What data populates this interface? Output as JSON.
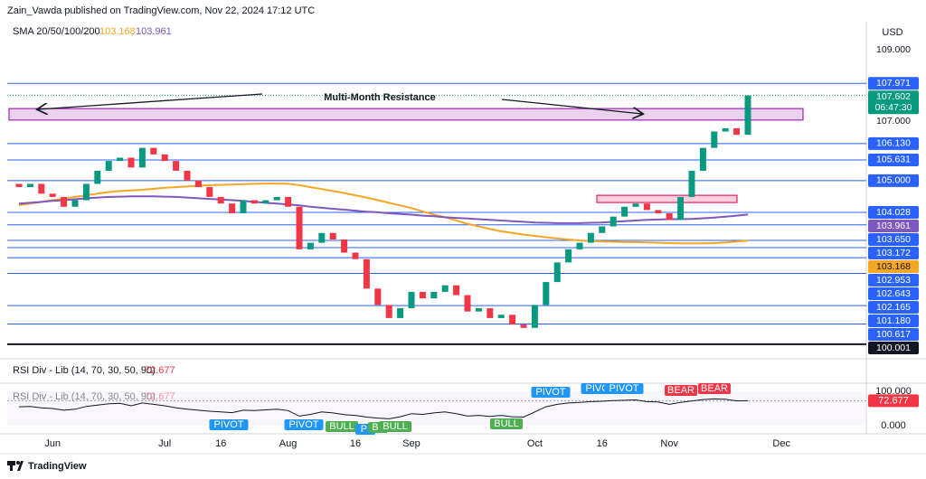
{
  "chart_data": {
    "type": "candlestick",
    "source": "Zain_Vawda published on TradingView.com, Nov 22, 2024 17:12 UTC",
    "indicator_label": "SMA 20/50/100/200",
    "currency": "USD",
    "annotation": "Multi-Month Resistance",
    "footer": "TradingView",
    "up_color": "#089981",
    "down_color": "#f23645",
    "ylim": [
      99.61,
      109.8
    ],
    "yticks": [
      {
        "value": 109,
        "label": "109.000"
      },
      {
        "value": 107,
        "label": "107.000"
      }
    ],
    "categories": [
      null,
      null,
      null,
      "Jun",
      null,
      null,
      null,
      null,
      null,
      null,
      null,
      null,
      null,
      "Jul",
      null,
      null,
      null,
      null,
      "16",
      null,
      null,
      null,
      null,
      null,
      "Aug",
      null,
      null,
      null,
      null,
      null,
      "16",
      null,
      null,
      null,
      null,
      "Sep",
      null,
      null,
      null,
      null,
      null,
      null,
      null,
      null,
      null,
      null,
      "Oct",
      null,
      null,
      null,
      null,
      null,
      "16",
      null,
      null,
      null,
      null,
      null,
      "Nov",
      null,
      null,
      null,
      null,
      null,
      null,
      null,
      null,
      null,
      "Dec"
    ],
    "open": [
      104.9,
      104.8,
      104.9,
      104.6,
      104.5,
      104.2,
      104.4,
      104.9,
      105.3,
      105.6,
      105.7,
      105.4,
      106.0,
      105.8,
      105.6,
      105.3,
      105.0,
      104.8,
      104.5,
      104.3,
      104.0,
      104.4,
      104.3,
      104.4,
      104.5,
      104.2,
      102.9,
      103.1,
      103.4,
      103.2,
      102.8,
      102.6,
      101.7,
      101.2,
      100.8,
      101.1,
      101.6,
      101.4,
      101.6,
      101.8,
      101.5,
      101.0,
      101.1,
      100.8,
      100.9,
      100.6,
      100.5,
      101.2,
      101.9,
      102.5,
      102.9,
      103.1,
      103.4,
      103.6,
      103.9,
      104.2,
      104.3,
      104.1,
      104.0,
      103.8,
      104.5,
      105.3,
      106.0,
      106.5,
      106.6,
      106.4,
      null,
      null,
      null
    ],
    "close": [
      104.8,
      104.9,
      104.6,
      104.5,
      104.2,
      104.4,
      104.9,
      105.3,
      105.6,
      105.7,
      105.4,
      106.0,
      105.8,
      105.6,
      105.3,
      105.0,
      104.8,
      104.5,
      104.3,
      104.0,
      104.4,
      104.3,
      104.4,
      104.5,
      104.2,
      102.9,
      103.1,
      103.4,
      103.2,
      102.8,
      102.6,
      101.7,
      101.2,
      100.8,
      101.1,
      101.6,
      101.4,
      101.6,
      101.8,
      101.5,
      101.0,
      101.1,
      100.8,
      100.9,
      100.6,
      100.5,
      101.2,
      101.9,
      102.5,
      102.9,
      103.1,
      103.4,
      103.6,
      103.9,
      104.2,
      104.3,
      104.1,
      104.0,
      103.8,
      104.5,
      105.3,
      106.0,
      106.5,
      106.6,
      106.4,
      107.602,
      null,
      null,
      null
    ],
    "countdown": "06:47:30",
    "current_color": "#089981",
    "sma": [
      {
        "color": "#f5a623",
        "values": [
          104.25,
          104.3,
          104.35,
          104.4,
          104.45,
          104.5,
          104.55,
          104.6,
          104.65,
          104.68,
          104.7,
          104.72,
          104.75,
          104.78,
          104.8,
          104.82,
          104.84,
          104.86,
          104.87,
          104.88,
          104.89,
          104.9,
          104.91,
          104.91,
          104.9,
          104.86,
          104.8,
          104.74,
          104.68,
          104.62,
          104.55,
          104.48,
          104.4,
          104.32,
          104.24,
          104.16,
          104.06,
          103.96,
          103.88,
          103.78,
          103.68,
          103.6,
          103.52,
          103.45,
          103.4,
          103.35,
          103.31,
          103.27,
          103.23,
          103.2,
          103.17,
          103.15,
          103.14,
          103.13,
          103.12,
          103.12,
          103.11,
          103.1,
          103.09,
          103.08,
          103.08,
          103.08,
          103.09,
          103.11,
          103.14,
          103.168,
          null,
          null,
          null
        ]
      },
      {
        "color": "#7e57c2",
        "values": [
          104.3,
          104.32,
          104.35,
          104.38,
          104.4,
          104.43,
          104.46,
          104.48,
          104.5,
          104.51,
          104.52,
          104.52,
          104.52,
          104.51,
          104.5,
          104.48,
          104.46,
          104.44,
          104.42,
          104.4,
          104.38,
          104.35,
          104.32,
          104.3,
          104.27,
          104.24,
          104.2,
          104.17,
          104.14,
          104.11,
          104.08,
          104.05,
          104.03,
          104.0,
          103.98,
          103.96,
          103.93,
          103.91,
          103.88,
          103.86,
          103.84,
          103.82,
          103.8,
          103.78,
          103.76,
          103.74,
          103.72,
          103.71,
          103.7,
          103.7,
          103.7,
          103.71,
          103.72,
          103.74,
          103.76,
          103.78,
          103.8,
          103.81,
          103.82,
          103.82,
          103.83,
          103.85,
          103.87,
          103.9,
          103.93,
          103.961,
          null,
          null,
          null
        ]
      }
    ],
    "level_color": "#2962ff",
    "levels": [
      107.971,
      {
        "value": 106.13,
        "label": "106.130"
      },
      105.631,
      {
        "value": 105,
        "label": "105.000"
      },
      104.028,
      {
        "value": 103.65,
        "label": "103.650"
      },
      103.172,
      102.953,
      102.643,
      102.165,
      {
        "value": 101.18,
        "label": "101.180"
      },
      100.617
    ],
    "floor": 100.001,
    "floor_color": "#131722",
    "zones": [
      {
        "low": 106.85,
        "high": 107.2,
        "fill": "#e1bee7",
        "stroke": "#9c27b0"
      },
      {
        "low": 104.33,
        "high": 104.55,
        "fill": "#f8bbd0",
        "stroke": "#e91e63"
      }
    ],
    "rsi": {
      "label": "RSI Div - Lib (14, 70, 30, 50, 90)",
      "color": "#131722",
      "value_color": "#f23645",
      "ylim": [
        0,
        100
      ],
      "yticks": [
        {
          "value": 100,
          "label": "100.000"
        },
        {
          "value": 0,
          "label": "0.000"
        }
      ],
      "values": [
        55,
        56,
        52,
        50,
        45,
        48,
        56,
        60,
        64,
        65,
        58,
        66,
        62,
        58,
        52,
        48,
        45,
        42,
        40,
        38,
        45,
        44,
        46,
        48,
        44,
        28,
        33,
        40,
        37,
        32,
        30,
        25,
        22,
        20,
        26,
        35,
        33,
        37,
        40,
        35,
        28,
        30,
        27,
        30,
        26,
        25,
        40,
        55,
        62,
        66,
        68,
        70,
        71,
        73,
        74,
        75,
        70,
        69,
        62,
        68,
        72,
        76,
        78,
        77,
        72,
        72.677,
        null,
        null,
        null
      ],
      "signals": [
        {
          "label": "PIVOT",
          "color": "#2196f3"
        },
        {
          "label": "PIVOT",
          "color": "#2196f3"
        },
        {
          "label": "BULL",
          "color": "#4caf50"
        },
        {
          "label": "PI",
          "color": "#2196f3"
        },
        {
          "label": "BL",
          "color": "#4caf50"
        },
        {
          "label": "BULL",
          "color": "#4caf50"
        },
        {
          "label": "BULL",
          "color": "#4caf50"
        },
        {
          "label": "PIVOT",
          "color": "#2196f3"
        },
        {
          "label": "PIVOT",
          "color": "#2196f3"
        },
        {
          "label": "PIVOT",
          "color": "#2196f3"
        },
        {
          "label": "BEAR",
          "color": "#f23645"
        },
        {
          "label": "BEAR",
          "color": "#f23645"
        }
      ]
    }
  }
}
